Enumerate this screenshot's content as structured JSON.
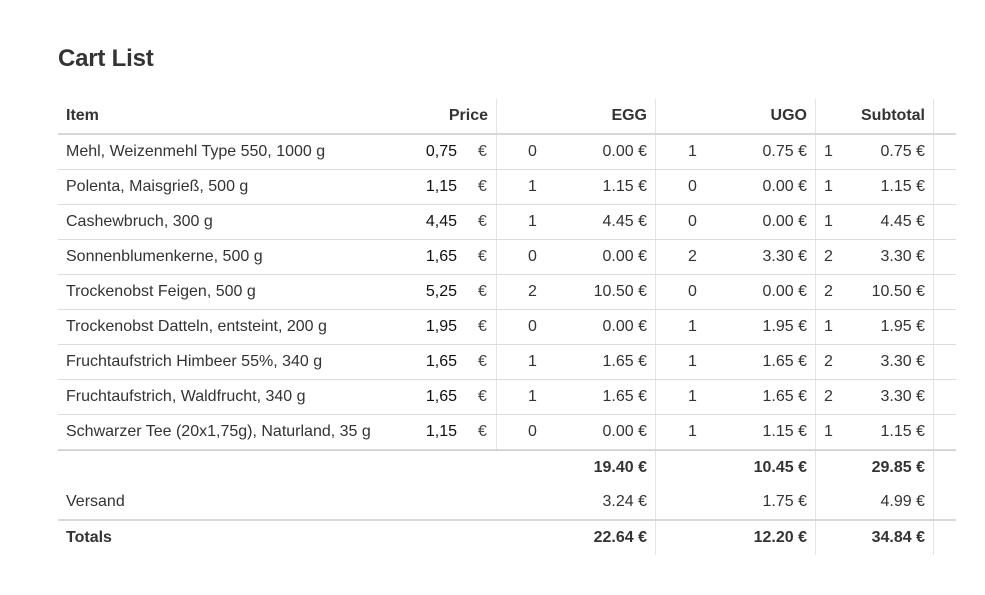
{
  "title": "Cart List",
  "headers": {
    "item": "Item",
    "price": "Price",
    "egg": "EGG",
    "ugo": "UGO",
    "subtotal": "Subtotal"
  },
  "currency": "€",
  "rows": [
    {
      "item": "Mehl, Weizenmehl Type 550, 1000 g",
      "price": "0,75",
      "egg_qty": "0",
      "egg_val": "0.00 €",
      "ugo_qty": "1",
      "ugo_val": "0.75 €",
      "sub_qty": "1",
      "sub_val": "0.75 €"
    },
    {
      "item": "Polenta, Maisgrieß, 500 g",
      "price": "1,15",
      "egg_qty": "1",
      "egg_val": "1.15 €",
      "ugo_qty": "0",
      "ugo_val": "0.00 €",
      "sub_qty": "1",
      "sub_val": "1.15 €"
    },
    {
      "item": "Cashewbruch, 300 g",
      "price": "4,45",
      "egg_qty": "1",
      "egg_val": "4.45 €",
      "ugo_qty": "0",
      "ugo_val": "0.00 €",
      "sub_qty": "1",
      "sub_val": "4.45 €"
    },
    {
      "item": "Sonnenblumenkerne, 500 g",
      "price": "1,65",
      "egg_qty": "0",
      "egg_val": "0.00 €",
      "ugo_qty": "2",
      "ugo_val": "3.30 €",
      "sub_qty": "2",
      "sub_val": "3.30 €"
    },
    {
      "item": "Trockenobst Feigen, 500 g",
      "price": "5,25",
      "egg_qty": "2",
      "egg_val": "10.50 €",
      "ugo_qty": "0",
      "ugo_val": "0.00 €",
      "sub_qty": "2",
      "sub_val": "10.50 €"
    },
    {
      "item": "Trockenobst Datteln, entsteint, 200 g",
      "price": "1,95",
      "egg_qty": "0",
      "egg_val": "0.00 €",
      "ugo_qty": "1",
      "ugo_val": "1.95 €",
      "sub_qty": "1",
      "sub_val": "1.95 €"
    },
    {
      "item": "Fruchtaufstrich Himbeer 55%, 340 g",
      "price": "1,65",
      "egg_qty": "1",
      "egg_val": "1.65 €",
      "ugo_qty": "1",
      "ugo_val": "1.65 €",
      "sub_qty": "2",
      "sub_val": "3.30 €"
    },
    {
      "item": "Fruchtaufstrich, Waldfrucht, 340 g",
      "price": "1,65",
      "egg_qty": "1",
      "egg_val": "1.65 €",
      "ugo_qty": "1",
      "ugo_val": "1.65 €",
      "sub_qty": "2",
      "sub_val": "3.30 €"
    },
    {
      "item": "Schwarzer Tee (20x1,75g), Naturland, 35 g",
      "price": "1,15",
      "egg_qty": "0",
      "egg_val": "0.00 €",
      "ugo_qty": "1",
      "ugo_val": "1.15 €",
      "sub_qty": "1",
      "sub_val": "1.15 €"
    }
  ],
  "sums": {
    "egg": "19.40 €",
    "ugo": "10.45 €",
    "subtotal": "29.85 €"
  },
  "shipping": {
    "label": "Versand",
    "egg": "3.24 €",
    "ugo": "1.75 €",
    "subtotal": "4.99 €"
  },
  "totals": {
    "label": "Totals",
    "egg": "22.64 €",
    "ugo": "12.20 €",
    "subtotal": "34.84 €"
  }
}
